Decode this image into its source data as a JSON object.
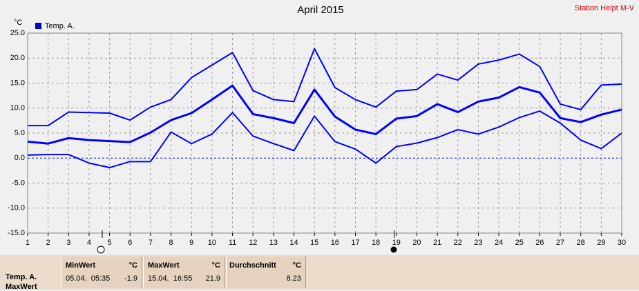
{
  "chart_data": {
    "type": "line",
    "title": "April 2015",
    "station": "Station Helpt M-V",
    "y_label": "°C",
    "x": [
      1,
      2,
      3,
      4,
      5,
      6,
      7,
      8,
      9,
      10,
      11,
      12,
      13,
      14,
      15,
      16,
      17,
      18,
      19,
      20,
      21,
      22,
      23,
      24,
      25,
      26,
      27,
      28,
      29,
      30
    ],
    "xlim": [
      1,
      30
    ],
    "series": [
      {
        "name": "Temp. A.",
        "color": "#0000ff",
        "values": [
          3.3,
          2.9,
          4.0,
          3.6,
          3.4,
          3.2,
          5.1,
          7.6,
          9.0,
          11.7,
          14.5,
          8.8,
          8.0,
          7.0,
          13.7,
          8.3,
          5.7,
          4.8,
          7.9,
          8.4,
          10.8,
          9.2,
          11.3,
          12.1,
          14.2,
          13.1,
          8.0,
          7.2,
          8.7,
          9.7
        ],
        "high": [
          6.5,
          6.5,
          9.2,
          9.1,
          9.0,
          7.6,
          10.2,
          11.7,
          16.1,
          18.6,
          21.1,
          13.5,
          11.7,
          11.3,
          21.9,
          14.1,
          11.7,
          10.2,
          13.4,
          13.7,
          16.8,
          15.6,
          18.8,
          19.6,
          20.8,
          18.3,
          10.8,
          9.7,
          14.6,
          14.8
        ],
        "low": [
          0.6,
          0.7,
          0.7,
          -1.0,
          -1.9,
          -0.7,
          -0.7,
          5.2,
          2.9,
          4.8,
          9.1,
          4.4,
          2.9,
          1.5,
          8.4,
          3.3,
          1.8,
          -1.0,
          2.3,
          3.0,
          4.1,
          5.7,
          4.8,
          6.2,
          8.1,
          9.4,
          7.0,
          3.6,
          1.9,
          5.0
        ]
      }
    ],
    "ylim": [
      -15,
      25
    ],
    "yticks": [
      {
        "value": -15,
        "label": "-15.0"
      },
      {
        "value": -10,
        "label": "-10.0"
      },
      {
        "value": -5,
        "label": "-5.0"
      },
      {
        "value": 0,
        "label": "0.0"
      },
      {
        "value": 5,
        "label": "5.0"
      },
      {
        "value": 10,
        "label": "10.0"
      },
      {
        "value": 15,
        "label": "15.0"
      },
      {
        "value": 20,
        "label": "20.0"
      },
      {
        "value": 25,
        "label": "25.0"
      }
    ],
    "grid": true
  },
  "summary": {
    "sensor": "Temp. A.",
    "sensor_sub": "MaxWert",
    "columns": [
      {
        "header": "MinWert",
        "unit": "°C",
        "time": "05.04.  05:35",
        "value": "-1.9"
      },
      {
        "header": "MaxWert",
        "unit": "°C",
        "time": "15.04.  16:55",
        "value": "21.9"
      },
      {
        "header": "Durchschnitt",
        "unit": "°C",
        "value": "8.23"
      }
    ]
  }
}
